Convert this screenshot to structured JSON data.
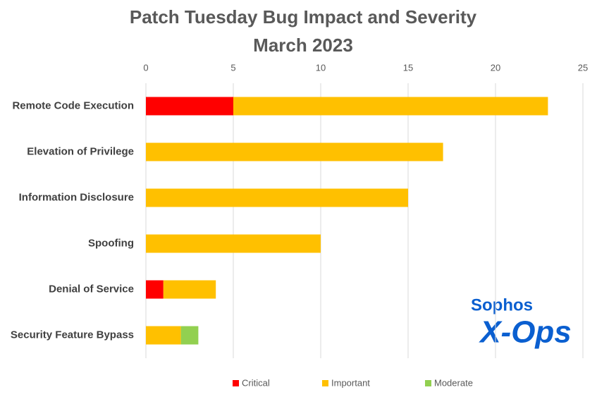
{
  "chart_data": {
    "type": "stacked-barh",
    "title": "Patch Tuesday Bug Impact and Severity",
    "subtitle": "March 2023",
    "categories": [
      "Remote Code Execution",
      "Elevation of Privilege",
      "Information Disclosure",
      "Spoofing",
      "Denial of Service",
      "Security Feature Bypass"
    ],
    "series": [
      {
        "name": "Critical",
        "color": "#ff0000",
        "values": [
          5,
          0,
          0,
          0,
          1,
          0
        ]
      },
      {
        "name": "Important",
        "color": "#ffc000",
        "values": [
          18,
          17,
          15,
          10,
          3,
          2
        ]
      },
      {
        "name": "Moderate",
        "color": "#92d050",
        "values": [
          0,
          0,
          0,
          0,
          0,
          1
        ]
      }
    ],
    "xlim": [
      0,
      25
    ],
    "xticks": [
      0,
      5,
      10,
      15,
      20,
      25
    ],
    "grid": true,
    "legend": "bottom"
  },
  "logo": {
    "top": "Sophos",
    "bottom": "X-Ops"
  }
}
